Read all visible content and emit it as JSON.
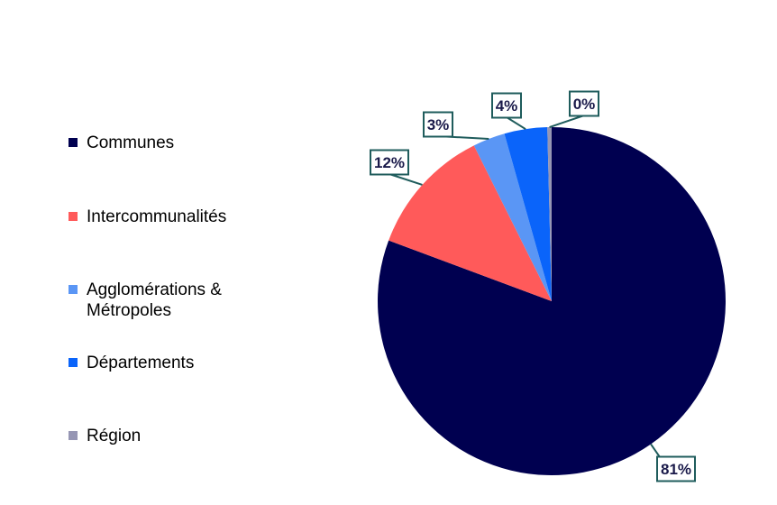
{
  "chart_data": {
    "type": "pie",
    "title": "",
    "legend_position": "left",
    "slices": [
      {
        "name": "Communes",
        "value": 81,
        "label": "81%",
        "color": "#000050"
      },
      {
        "name": "Intercommunalités",
        "value": 12,
        "label": "12%",
        "color": "#ff5a5a"
      },
      {
        "name": "Agglomérations &\nMétropoles",
        "value": 3,
        "label": "3%",
        "color": "#5a96f5"
      },
      {
        "name": "Départements",
        "value": 4,
        "label": "4%",
        "color": "#0a64fa"
      },
      {
        "name": "Région",
        "value": 0.4,
        "label": "0%",
        "color": "#9696b4"
      }
    ]
  }
}
